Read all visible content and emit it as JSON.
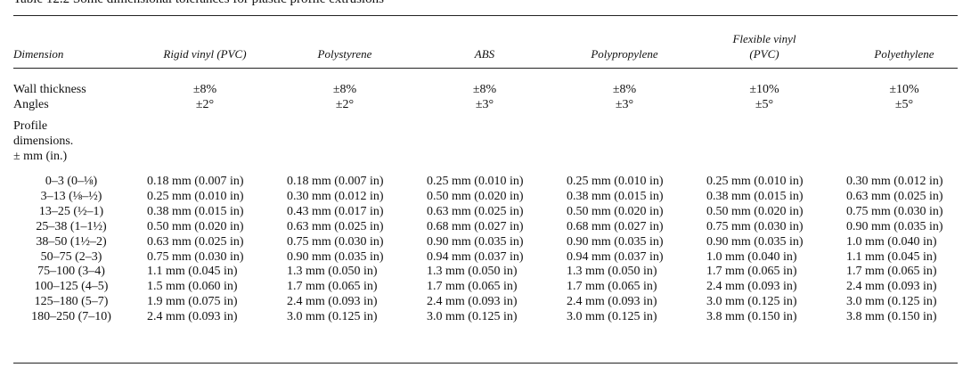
{
  "title": "Table 12.2 Some dimensional tolerances for plastic profile extrusions",
  "table": {
    "header": [
      "Dimension",
      "Rigid vinyl (PVC)",
      "Polystyrene",
      "ABS",
      "Polypropylene",
      "Flexible vinyl\n(PVC)",
      "Polyethylene"
    ],
    "tolerance_rows": [
      [
        "Wall thickness",
        "±8%",
        "±8%",
        "±8%",
        "±8%",
        "±10%",
        "±10%"
      ],
      [
        "Angles",
        "±2°",
        "±2°",
        "±3°",
        "±3°",
        "±5°",
        "±5°"
      ]
    ],
    "section_label": "Profile\ndimensions.\n± mm (in.)",
    "rows": [
      [
        "0–3 (0–⅛)",
        "0.18 mm (0.007 in)",
        "0.18 mm (0.007 in)",
        "0.25 mm (0.010 in)",
        "0.25 mm (0.010 in)",
        "0.25 mm (0.010 in)",
        "0.30 mm (0.012 in)"
      ],
      [
        "3–13 (⅛–½)",
        "0.25 mm (0.010 in)",
        "0.30 mm (0.012 in)",
        "0.50 mm (0.020 in)",
        "0.38 mm (0.015 in)",
        "0.38 mm (0.015 in)",
        "0.63 mm (0.025 in)"
      ],
      [
        "13–25 (½–1)",
        "0.38 mm (0.015 in)",
        "0.43 mm (0.017 in)",
        "0.63 mm (0.025 in)",
        "0.50 mm (0.020 in)",
        "0.50 mm (0.020 in)",
        "0.75 mm (0.030 in)"
      ],
      [
        "25–38 (1–1½)",
        "0.50 mm (0.020 in)",
        "0.63 mm (0.025 in)",
        "0.68 mm (0.027 in)",
        "0.68 mm (0.027 in)",
        "0.75 mm (0.030 in)",
        "0.90 mm (0.035 in)"
      ],
      [
        "38–50 (1½–2)",
        "0.63 mm (0.025 in)",
        "0.75 mm (0.030 in)",
        "0.90 mm (0.035 in)",
        "0.90 mm (0.035 in)",
        "0.90 mm (0.035 in)",
        "1.0 mm (0.040 in)"
      ],
      [
        "50–75 (2–3)",
        "0.75 mm (0.030 in)",
        "0.90 mm (0.035 in)",
        "0.94 mm (0.037 in)",
        "0.94 mm (0.037 in)",
        "1.0 mm (0.040 in)",
        "1.1 mm (0.045 in)"
      ],
      [
        "75–100 (3–4)",
        "1.1 mm (0.045 in)",
        "1.3 mm (0.050 in)",
        "1.3 mm (0.050 in)",
        "1.3 mm (0.050 in)",
        "1.7 mm (0.065 in)",
        "1.7 mm (0.065 in)"
      ],
      [
        "100–125 (4–5)",
        "1.5 mm (0.060 in)",
        "1.7 mm (0.065 in)",
        "1.7 mm (0.065 in)",
        "1.7 mm (0.065 in)",
        "2.4 mm (0.093 in)",
        "2.4 mm (0.093 in)"
      ],
      [
        "125–180 (5–7)",
        "1.9 mm (0.075 in)",
        "2.4 mm (0.093 in)",
        "2.4 mm (0.093 in)",
        "2.4 mm (0.093 in)",
        "3.0 mm (0.125 in)",
        "3.0 mm (0.125 in)"
      ],
      [
        "180–250 (7–10)",
        "2.4 mm (0.093 in)",
        "3.0 mm (0.125 in)",
        "3.0 mm (0.125 in)",
        "3.0 mm (0.125 in)",
        "3.8 mm (0.150 in)",
        "3.8 mm (0.150 in)"
      ]
    ]
  }
}
